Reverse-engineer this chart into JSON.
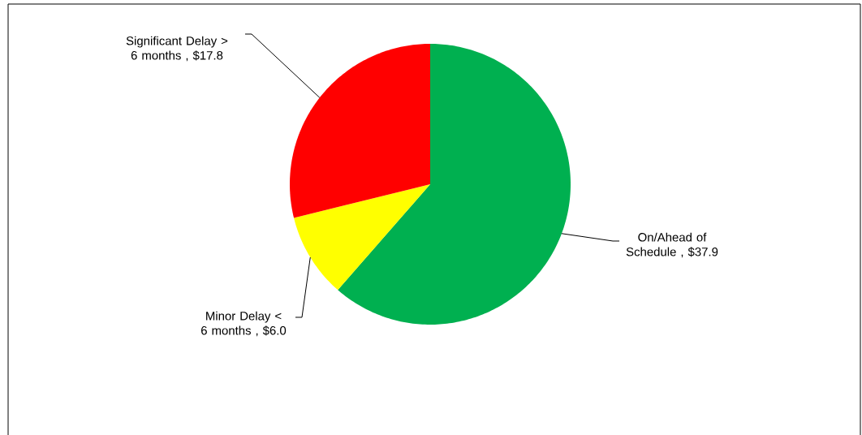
{
  "chart_data": {
    "type": "pie",
    "categories": [
      "On/Ahead of Schedule",
      "Minor Delay < 6 months",
      "Significant Delay > 6 months"
    ],
    "values": [
      37.9,
      6.0,
      17.8
    ],
    "colors": [
      "#00b050",
      "#ffff00",
      "#ff0000"
    ],
    "value_labels": [
      ", $37.9",
      ", $6.0",
      ", $17.8"
    ]
  }
}
